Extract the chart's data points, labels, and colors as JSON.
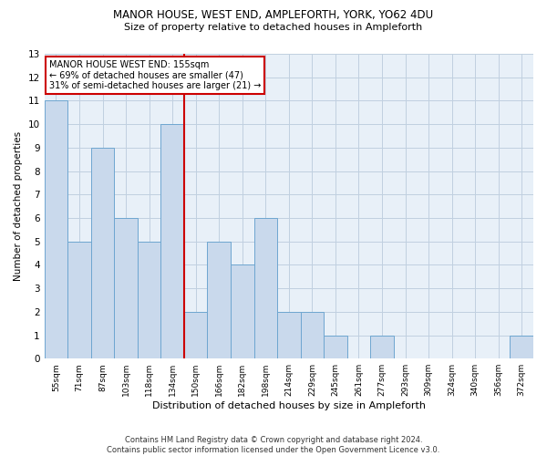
{
  "title1": "MANOR HOUSE, WEST END, AMPLEFORTH, YORK, YO62 4DU",
  "title2": "Size of property relative to detached houses in Ampleforth",
  "xlabel": "Distribution of detached houses by size in Ampleforth",
  "ylabel": "Number of detached properties",
  "categories": [
    "55sqm",
    "71sqm",
    "87sqm",
    "103sqm",
    "118sqm",
    "134sqm",
    "150sqm",
    "166sqm",
    "182sqm",
    "198sqm",
    "214sqm",
    "229sqm",
    "245sqm",
    "261sqm",
    "277sqm",
    "293sqm",
    "309sqm",
    "324sqm",
    "340sqm",
    "356sqm",
    "372sqm"
  ],
  "values": [
    11,
    5,
    9,
    6,
    5,
    10,
    2,
    5,
    4,
    6,
    2,
    2,
    1,
    0,
    1,
    0,
    0,
    0,
    0,
    0,
    1
  ],
  "bar_color": "#c9d9ec",
  "bar_edge_color": "#6ea6d0",
  "highlight_line_index": 5.5,
  "highlight_line_color": "#cc0000",
  "annotation_text": "MANOR HOUSE WEST END: 155sqm\n← 69% of detached houses are smaller (47)\n31% of semi-detached houses are larger (21) →",
  "annotation_box_color": "#ffffff",
  "annotation_box_edge_color": "#cc0000",
  "ylim": [
    0,
    13
  ],
  "yticks": [
    0,
    1,
    2,
    3,
    4,
    5,
    6,
    7,
    8,
    9,
    10,
    11,
    12,
    13
  ],
  "footnote": "Contains HM Land Registry data © Crown copyright and database right 2024.\nContains public sector information licensed under the Open Government Licence v3.0.",
  "grid_color": "#c0d0e0",
  "background_color": "#e8f0f8",
  "fig_width": 6.0,
  "fig_height": 5.0,
  "dpi": 100
}
